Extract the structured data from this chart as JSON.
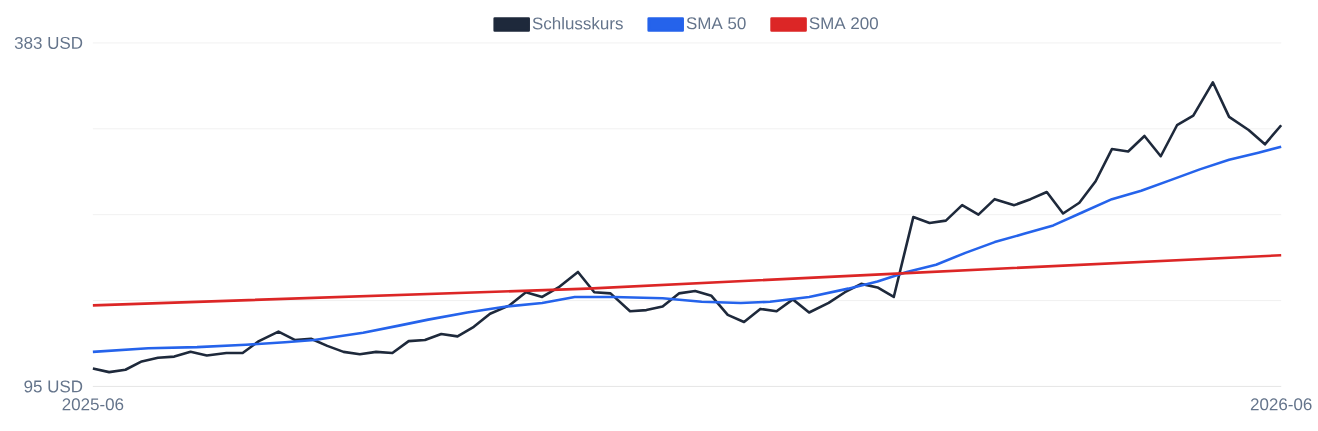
{
  "chart_data": {
    "type": "line",
    "xlim": [
      "2025-06",
      "2026-06"
    ],
    "xticks": [
      "2025-06",
      "2026-06"
    ],
    "ylim": [
      95,
      383
    ],
    "yticks": [
      {
        "value": 95,
        "label": "95 USD"
      },
      {
        "value": 167,
        "label": null
      },
      {
        "value": 239,
        "label": null
      },
      {
        "value": 311,
        "label": null
      },
      {
        "value": 383,
        "label": "383 USD"
      }
    ],
    "grid": "y",
    "legend": "top",
    "series": [
      {
        "name": "Schlusskurs",
        "color": "#1e293b",
        "x": [
          "2025-06-01",
          "2025-06-06",
          "2025-06-11",
          "2025-06-16",
          "2025-06-21",
          "2025-06-26",
          "2025-07-01",
          "2025-07-06",
          "2025-07-12",
          "2025-07-17",
          "2025-07-22",
          "2025-07-28",
          "2025-08-02",
          "2025-08-07",
          "2025-08-12",
          "2025-08-17",
          "2025-08-22",
          "2025-08-27",
          "2025-09-01",
          "2025-09-06",
          "2025-09-11",
          "2025-09-16",
          "2025-09-21",
          "2025-09-26",
          "2025-10-01",
          "2025-10-07",
          "2025-10-12",
          "2025-10-17",
          "2025-10-22",
          "2025-10-28",
          "2025-11-02",
          "2025-11-07",
          "2025-11-13",
          "2025-11-18",
          "2025-11-23",
          "2025-11-28",
          "2025-12-03",
          "2025-12-08",
          "2025-12-13",
          "2025-12-18",
          "2025-12-23",
          "2025-12-28",
          "2026-01-02",
          "2026-01-07",
          "2026-01-13",
          "2026-01-18",
          "2026-01-23",
          "2026-01-28",
          "2026-02-02",
          "2026-02-08",
          "2026-02-13",
          "2026-02-18",
          "2026-02-23",
          "2026-02-28",
          "2026-03-05",
          "2026-03-11",
          "2026-03-16",
          "2026-03-21",
          "2026-03-26",
          "2026-03-31",
          "2026-04-05",
          "2026-04-10",
          "2026-04-15",
          "2026-04-20",
          "2026-04-25",
          "2026-04-30",
          "2026-05-05",
          "2026-05-11",
          "2026-05-16",
          "2026-05-22",
          "2026-05-27",
          "2026-06-01"
        ],
        "values": [
          110,
          107,
          109,
          116,
          119,
          120,
          124,
          121,
          123,
          123,
          133,
          141,
          134,
          135,
          129,
          124,
          122,
          124,
          123,
          133,
          134,
          139,
          137,
          145,
          156,
          163,
          174,
          170,
          178,
          191,
          174,
          173,
          158,
          159,
          162,
          173,
          175,
          171,
          155,
          149,
          160,
          158,
          168,
          157,
          165,
          174,
          181,
          178,
          170,
          237,
          232,
          234,
          247,
          239,
          252,
          247,
          252,
          258,
          240,
          249,
          267,
          294,
          292,
          305,
          288,
          314,
          322,
          350,
          321,
          310,
          298,
          314
        ]
      },
      {
        "name": "SMA 50",
        "color": "#2563eb",
        "x": [
          "2025-06-01",
          "2025-06-18",
          "2025-07-03",
          "2025-07-18",
          "2025-07-30",
          "2025-08-08",
          "2025-08-23",
          "2025-09-03",
          "2025-09-12",
          "2025-09-24",
          "2025-10-06",
          "2025-10-17",
          "2025-10-27",
          "2025-11-08",
          "2025-11-23",
          "2025-12-05",
          "2025-12-17",
          "2025-12-26",
          "2026-01-07",
          "2026-01-19",
          "2026-01-28",
          "2026-02-06",
          "2026-02-15",
          "2026-02-24",
          "2026-03-05",
          "2026-03-14",
          "2026-03-23",
          "2026-04-01",
          "2026-04-10",
          "2026-04-19",
          "2026-04-28",
          "2026-05-07",
          "2026-05-16",
          "2026-05-25",
          "2026-06-01"
        ],
        "values": [
          124,
          127,
          128,
          130,
          132,
          134,
          140,
          146,
          151,
          157,
          162,
          165,
          170,
          170,
          169,
          166,
          165,
          166,
          170,
          177,
          183,
          191,
          197,
          207,
          216,
          223,
          230,
          241,
          252,
          259,
          268,
          277,
          285,
          291,
          296
        ]
      },
      {
        "name": "SMA 200",
        "color": "#dc2626",
        "x": [
          "2025-06-01",
          "2025-10-31",
          "2026-02-06",
          "2026-06-01"
        ],
        "values": [
          163,
          177,
          190,
          205
        ]
      }
    ]
  }
}
